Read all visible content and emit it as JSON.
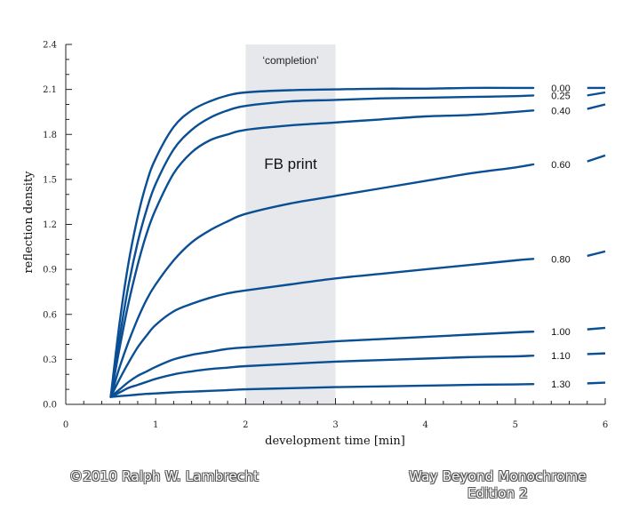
{
  "chart_data": {
    "type": "line",
    "title": "",
    "xlabel": "development time [min]",
    "ylabel": "reflection density",
    "xlim": [
      0,
      6
    ],
    "ylim": [
      0.0,
      2.4
    ],
    "xticks": [
      "0",
      "1",
      "2",
      "3",
      "4",
      "5",
      "6"
    ],
    "yticks": [
      "0.0",
      "0.3",
      "0.6",
      "0.9",
      "1.2",
      "1.5",
      "1.8",
      "2.1",
      "2.4"
    ],
    "grid": false,
    "band": {
      "x0": 2,
      "x1": 3,
      "color": "#e6e8eb"
    },
    "annotations": {
      "completion": "‘completion’",
      "fb_print": "FB print"
    },
    "line_color": "#0a4f94",
    "series": [
      {
        "name": "0.00",
        "x": [
          0.5,
          0.6,
          0.7,
          0.8,
          0.9,
          1.0,
          1.2,
          1.4,
          1.6,
          1.8,
          2.0,
          2.5,
          3.0,
          3.5,
          4.0,
          4.5,
          5.0,
          5.2
        ],
        "y": [
          0.05,
          0.55,
          0.95,
          1.25,
          1.48,
          1.64,
          1.85,
          1.96,
          2.02,
          2.06,
          2.08,
          2.095,
          2.1,
          2.105,
          2.105,
          2.11,
          2.11,
          2.11
        ],
        "ext_y": [
          2.11,
          2.11
        ]
      },
      {
        "name": "0.25",
        "x": [
          0.5,
          0.6,
          0.7,
          0.8,
          0.9,
          1.0,
          1.2,
          1.4,
          1.6,
          1.8,
          2.0,
          2.5,
          3.0,
          3.5,
          4.0,
          4.5,
          5.0,
          5.2
        ],
        "y": [
          0.05,
          0.45,
          0.8,
          1.08,
          1.3,
          1.47,
          1.7,
          1.83,
          1.91,
          1.96,
          1.99,
          2.02,
          2.03,
          2.04,
          2.045,
          2.05,
          2.055,
          2.06
        ],
        "ext_y": [
          2.06,
          2.08
        ]
      },
      {
        "name": "0.40",
        "x": [
          0.5,
          0.6,
          0.7,
          0.8,
          0.9,
          1.0,
          1.2,
          1.4,
          1.6,
          1.8,
          2.0,
          2.5,
          3.0,
          3.5,
          4.0,
          4.5,
          5.0,
          5.2
        ],
        "y": [
          0.05,
          0.38,
          0.68,
          0.93,
          1.14,
          1.3,
          1.54,
          1.68,
          1.76,
          1.8,
          1.83,
          1.86,
          1.88,
          1.9,
          1.92,
          1.93,
          1.95,
          1.96
        ],
        "ext_y": [
          1.97,
          2.0
        ]
      },
      {
        "name": "0.60",
        "x": [
          0.5,
          0.6,
          0.7,
          0.8,
          0.9,
          1.0,
          1.2,
          1.4,
          1.6,
          1.8,
          2.0,
          2.5,
          3.0,
          3.5,
          4.0,
          4.5,
          5.0,
          5.2
        ],
        "y": [
          0.05,
          0.25,
          0.42,
          0.57,
          0.7,
          0.8,
          0.96,
          1.08,
          1.16,
          1.22,
          1.27,
          1.34,
          1.39,
          1.44,
          1.49,
          1.54,
          1.58,
          1.6
        ],
        "ext_y": [
          1.62,
          1.66
        ]
      },
      {
        "name": "0.80",
        "x": [
          0.5,
          0.6,
          0.7,
          0.8,
          0.9,
          1.0,
          1.2,
          1.4,
          1.6,
          1.8,
          2.0,
          2.5,
          3.0,
          3.5,
          4.0,
          4.5,
          5.0,
          5.2
        ],
        "y": [
          0.05,
          0.17,
          0.28,
          0.38,
          0.46,
          0.53,
          0.62,
          0.67,
          0.71,
          0.74,
          0.76,
          0.8,
          0.84,
          0.87,
          0.9,
          0.93,
          0.96,
          0.97
        ],
        "ext_y": [
          0.99,
          1.02
        ]
      },
      {
        "name": "1.00",
        "x": [
          0.5,
          0.6,
          0.7,
          0.8,
          0.9,
          1.0,
          1.2,
          1.4,
          1.6,
          1.8,
          2.0,
          2.5,
          3.0,
          3.5,
          4.0,
          4.5,
          5.0,
          5.2
        ],
        "y": [
          0.05,
          0.1,
          0.15,
          0.19,
          0.22,
          0.25,
          0.3,
          0.33,
          0.35,
          0.37,
          0.38,
          0.4,
          0.42,
          0.435,
          0.45,
          0.465,
          0.48,
          0.485
        ],
        "ext_y": [
          0.5,
          0.51
        ]
      },
      {
        "name": "1.10",
        "x": [
          0.5,
          0.6,
          0.7,
          0.8,
          0.9,
          1.0,
          1.2,
          1.4,
          1.6,
          1.8,
          2.0,
          2.5,
          3.0,
          3.5,
          4.0,
          4.5,
          5.0,
          5.2
        ],
        "y": [
          0.05,
          0.08,
          0.11,
          0.13,
          0.15,
          0.17,
          0.2,
          0.22,
          0.235,
          0.245,
          0.255,
          0.27,
          0.285,
          0.295,
          0.305,
          0.315,
          0.32,
          0.325
        ],
        "ext_y": [
          0.335,
          0.34
        ]
      },
      {
        "name": "1.30",
        "x": [
          0.5,
          0.6,
          0.7,
          0.8,
          0.9,
          1.0,
          1.2,
          1.4,
          1.6,
          1.8,
          2.0,
          2.5,
          3.0,
          3.5,
          4.0,
          4.5,
          5.0,
          5.2
        ],
        "y": [
          0.05,
          0.055,
          0.06,
          0.065,
          0.07,
          0.073,
          0.08,
          0.085,
          0.09,
          0.095,
          0.1,
          0.108,
          0.115,
          0.12,
          0.125,
          0.13,
          0.133,
          0.135
        ],
        "ext_y": [
          0.14,
          0.145
        ]
      }
    ]
  },
  "footer": {
    "copyright": "©2010   Ralph W. Lambrecht",
    "book_line1": "Way Beyond Monochrome",
    "book_line2": "Edition 2"
  }
}
